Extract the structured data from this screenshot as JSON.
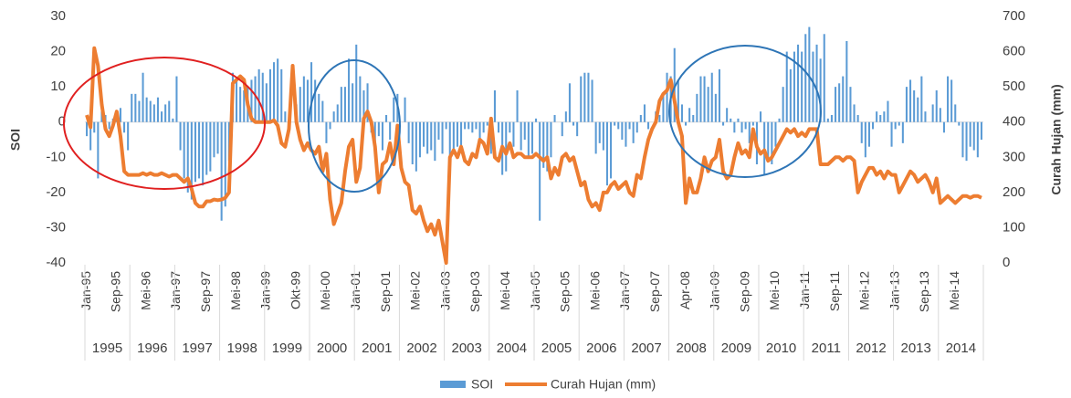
{
  "chart_data": {
    "type": "bar-line",
    "y_label": "SOI",
    "y2_label": "Curah Hujan (mm)",
    "ylim": [
      -40,
      30
    ],
    "yticks": [
      -40,
      -30,
      -20,
      -10,
      0,
      10,
      20,
      30
    ],
    "y2lim": [
      0,
      700
    ],
    "y2ticks": [
      0,
      100,
      200,
      300,
      400,
      500,
      600,
      700
    ],
    "year_labels": [
      "1995",
      "1996",
      "1997",
      "1998",
      "1999",
      "2000",
      "2001",
      "2002",
      "2003",
      "2004",
      "2005",
      "2006",
      "2007",
      "2008",
      "2009",
      "2010",
      "2011",
      "2012",
      "2013",
      "2014"
    ],
    "categories": [
      "Jan-95",
      null,
      null,
      null,
      null,
      null,
      null,
      null,
      "Sep-95",
      null,
      null,
      null,
      null,
      null,
      null,
      null,
      "Mei-96",
      null,
      null,
      null,
      null,
      null,
      null,
      null,
      "Jan-97",
      null,
      null,
      null,
      null,
      null,
      null,
      null,
      "Sep-97",
      null,
      null,
      null,
      null,
      null,
      null,
      null,
      "Mei-98",
      null,
      null,
      null,
      null,
      null,
      null,
      null,
      "Jan-99",
      null,
      null,
      null,
      null,
      null,
      null,
      null,
      "Okt-99",
      null,
      null,
      null,
      null,
      null,
      null,
      null,
      "Mei-00",
      null,
      null,
      null,
      null,
      null,
      null,
      null,
      "Jan-01",
      null,
      null,
      null,
      null,
      null,
      null,
      null,
      "Sep-01",
      null,
      null,
      null,
      null,
      null,
      null,
      null,
      "Mei-02",
      null,
      null,
      null,
      null,
      null,
      null,
      null,
      "Jan-03",
      null,
      null,
      null,
      null,
      null,
      null,
      null,
      "Sep-03",
      null,
      null,
      null,
      null,
      null,
      null,
      null,
      "Mei-04",
      null,
      null,
      null,
      null,
      null,
      null,
      null,
      "Jan-05",
      null,
      null,
      null,
      null,
      null,
      null,
      null,
      "Sep-05",
      null,
      null,
      null,
      null,
      null,
      null,
      null,
      "Mei-06",
      null,
      null,
      null,
      null,
      null,
      null,
      null,
      "Jan-07",
      null,
      null,
      null,
      null,
      null,
      null,
      null,
      "Sep-07",
      null,
      null,
      null,
      null,
      null,
      null,
      null,
      "Apr-08",
      null,
      null,
      null,
      null,
      null,
      null,
      null,
      "Jan-09",
      null,
      null,
      null,
      null,
      null,
      null,
      null,
      "Sep-09",
      null,
      null,
      null,
      null,
      null,
      null,
      null,
      "Mei-10",
      null,
      null,
      null,
      null,
      null,
      null,
      null,
      "Jan-11",
      null,
      null,
      null,
      null,
      null,
      null,
      null,
      "Sep-11",
      null,
      null,
      null,
      null,
      null,
      null,
      null,
      "Mei-12",
      null,
      null,
      null,
      null,
      null,
      null,
      null,
      "Jan-13",
      null,
      null,
      null,
      null,
      null,
      null,
      null,
      "Sep-13",
      null,
      null,
      null,
      null,
      null,
      null,
      null,
      "Mei-14",
      null,
      null,
      null,
      null,
      null,
      null,
      null
    ],
    "series": [
      {
        "name": "SOI",
        "color": "#5b9bd5",
        "type": "bar",
        "values": [
          -4,
          -8,
          -3,
          -16,
          3,
          2,
          -2,
          1,
          3,
          4,
          -3,
          -8,
          8,
          8,
          6,
          14,
          7,
          6,
          5,
          7,
          3,
          5,
          6,
          1,
          13,
          -8,
          -16,
          -20,
          -22,
          -17,
          -16,
          -18,
          -15,
          -14,
          -10,
          -9,
          -28,
          -24,
          -11,
          14,
          12,
          10,
          9,
          10,
          12,
          13,
          15,
          14,
          11,
          15,
          17,
          18,
          15,
          3,
          -1,
          0,
          5,
          10,
          13,
          12,
          17,
          12,
          8,
          6,
          -6,
          -2,
          3,
          5,
          10,
          10,
          18,
          11,
          22,
          13,
          9,
          11,
          -3,
          -6,
          -4,
          -8,
          2,
          -5,
          7,
          8,
          0,
          7,
          -6,
          -12,
          -14,
          -10,
          -7,
          -9,
          -8,
          -11,
          -5,
          -9,
          -2,
          -13,
          -8,
          -7,
          -7,
          -2,
          -2,
          -3,
          -2,
          -5,
          -3,
          -1,
          -9,
          9,
          -3,
          -15,
          -14,
          -3,
          -7,
          9,
          -8,
          -5,
          -10,
          -9,
          1,
          -28,
          -13,
          -14,
          -10,
          2,
          0,
          -4,
          3,
          11,
          -1,
          -4,
          13,
          14,
          14,
          12,
          -9,
          -6,
          -8,
          -18,
          -16,
          -1,
          -2,
          -5,
          -7,
          -2,
          -6,
          -3,
          2,
          5,
          -2,
          0,
          3,
          2,
          8,
          14,
          13,
          21,
          12,
          5,
          -1,
          4,
          2,
          8,
          13,
          13,
          10,
          14,
          8,
          15,
          -1,
          4,
          1,
          -3,
          1,
          -3,
          -2,
          -6,
          -1,
          -12,
          3,
          -15,
          -11,
          -12,
          -7,
          1,
          10,
          20,
          15,
          20,
          22,
          20,
          25,
          27,
          20,
          22,
          18,
          25,
          1,
          2,
          10,
          11,
          13,
          23,
          10,
          5,
          2,
          -6,
          -10,
          -7,
          -2,
          3,
          2,
          3,
          6,
          -7,
          -2,
          -1,
          -6,
          10,
          12,
          9,
          7,
          13,
          3,
          0,
          5,
          9,
          4,
          -3,
          13,
          12,
          5,
          -1,
          -10,
          -11,
          -7,
          -8,
          -10,
          -5
        ]
      },
      {
        "name": "Curah Hujan (mm)",
        "color": "#ed7d31",
        "type": "line",
        "axis": "y2",
        "values": [
          420,
          385,
          610,
          560,
          450,
          380,
          360,
          390,
          430,
          360,
          260,
          250,
          250,
          250,
          250,
          255,
          250,
          255,
          250,
          250,
          255,
          250,
          245,
          250,
          250,
          240,
          230,
          240,
          210,
          170,
          160,
          160,
          175,
          175,
          180,
          178,
          180,
          185,
          200,
          510,
          520,
          530,
          520,
          450,
          410,
          400,
          400,
          400,
          400,
          400,
          405,
          390,
          340,
          330,
          380,
          560,
          400,
          350,
          320,
          340,
          320,
          310,
          330,
          260,
          310,
          180,
          110,
          140,
          170,
          260,
          330,
          350,
          230,
          270,
          410,
          430,
          400,
          330,
          200,
          280,
          290,
          340,
          280,
          390,
          270,
          230,
          220,
          150,
          140,
          160,
          120,
          90,
          110,
          80,
          120,
          60,
          0,
          300,
          320,
          300,
          330,
          290,
          280,
          310,
          300,
          350,
          340,
          310,
          410,
          300,
          290,
          330,
          310,
          340,
          300,
          310,
          310,
          300,
          300,
          300,
          310,
          300,
          290,
          300,
          240,
          270,
          250,
          300,
          310,
          290,
          300,
          260,
          220,
          230,
          180,
          160,
          170,
          150,
          200,
          200,
          220,
          230,
          210,
          220,
          230,
          200,
          190,
          250,
          240,
          300,
          350,
          380,
          400,
          460,
          480,
          490,
          520,
          460,
          400,
          360,
          170,
          240,
          200,
          200,
          240,
          300,
          260,
          290,
          300,
          350,
          260,
          240,
          250,
          300,
          340,
          310,
          320,
          300,
          380,
          330,
          310,
          320,
          290,
          300,
          320,
          340,
          360,
          380,
          370,
          380,
          360,
          370,
          360,
          380,
          380,
          380,
          280,
          280,
          280,
          290,
          300,
          300,
          290,
          300,
          300,
          290,
          200,
          230,
          250,
          270,
          270,
          250,
          260,
          240,
          260,
          250,
          250,
          200,
          220,
          240,
          260,
          250,
          230,
          240,
          250,
          230,
          200,
          240,
          170,
          180,
          190,
          180,
          170,
          180,
          190,
          190,
          185,
          190,
          190,
          185
        ]
      }
    ]
  }
}
